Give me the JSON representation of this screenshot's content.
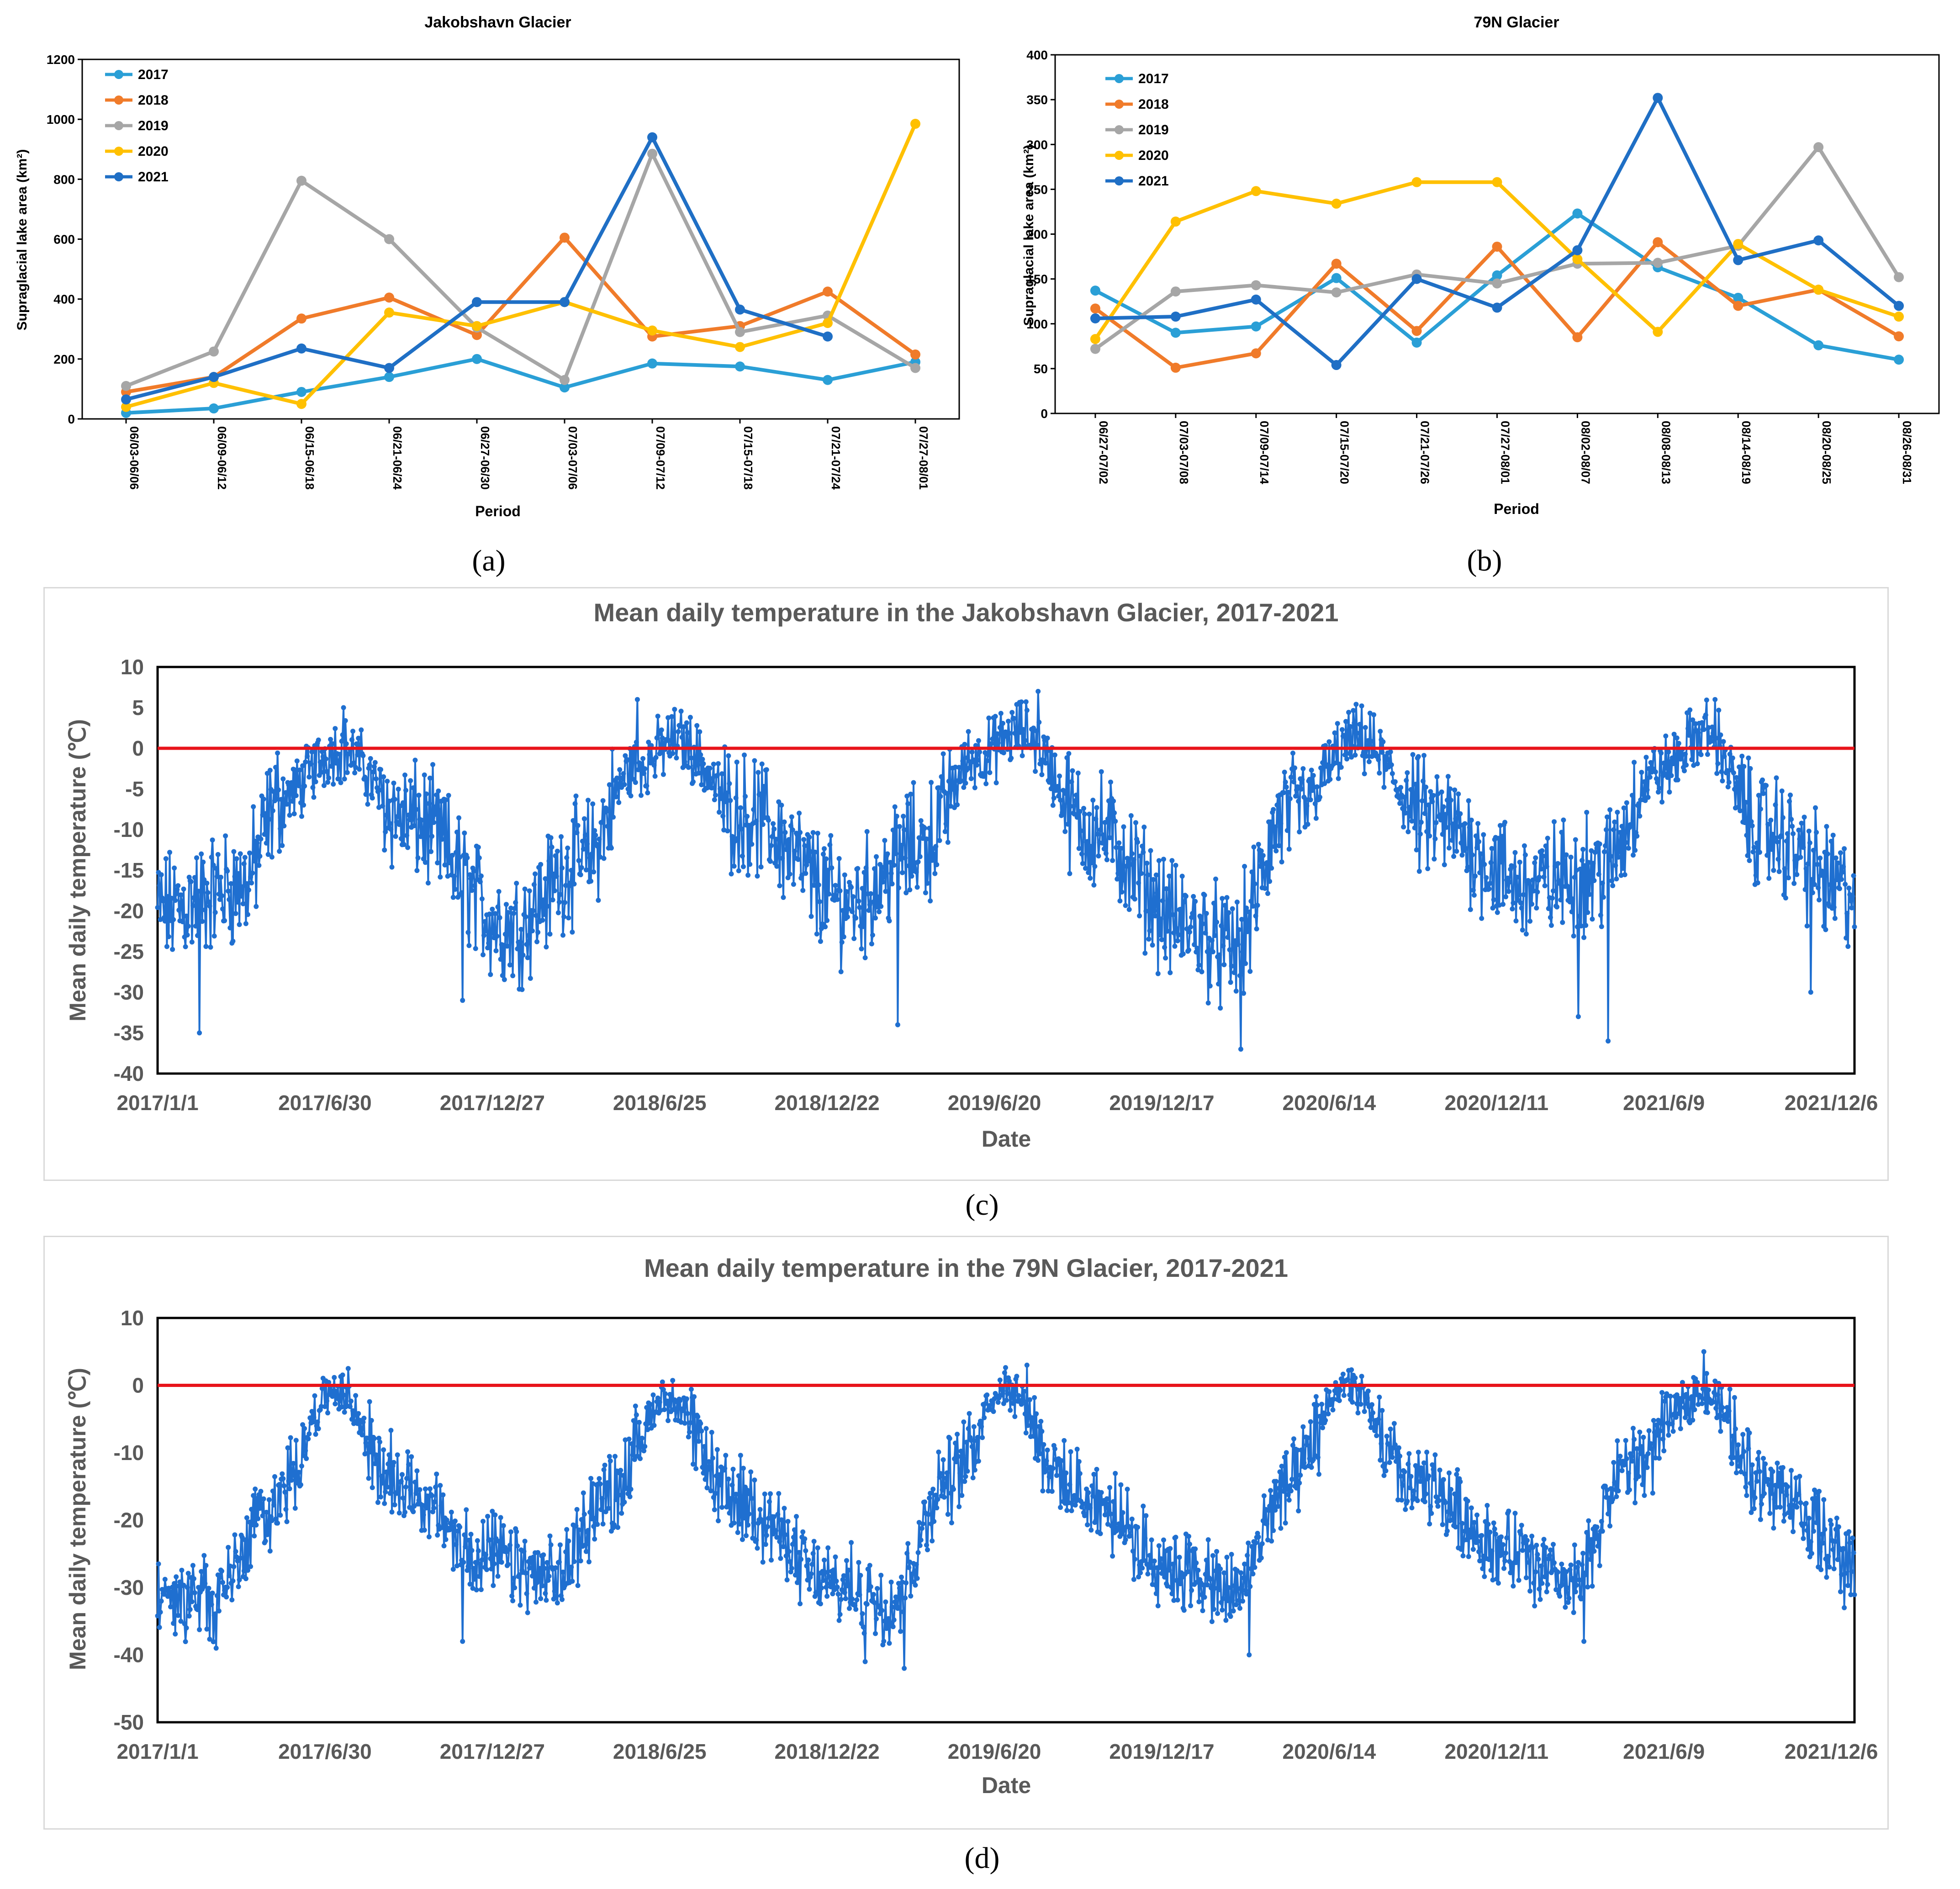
{
  "panels": {
    "a": {
      "caption": "(a)"
    },
    "b": {
      "caption": "(b)"
    },
    "c": {
      "caption": "(c)"
    },
    "d": {
      "caption": "(d)"
    }
  },
  "colors": {
    "2017": "#2a9fd6",
    "2018": "#f07b2a",
    "2019": "#a6a6a6",
    "2020": "#ffc000",
    "2021": "#1f6fc5",
    "temp": "#1f6fd0",
    "zero": "#e8141b",
    "text": "#595959"
  },
  "chart_data": [
    {
      "type": "line",
      "title": "Jakobshavn Glacier",
      "xlabel": "Period",
      "ylabel": "Supraglacial lake area (km²)",
      "ylim": [
        0,
        1200
      ],
      "yticks": [
        0,
        200,
        400,
        600,
        800,
        1000,
        1200
      ],
      "categories": [
        "06/03-06/06",
        "06/09-06/12",
        "06/15-06/18",
        "06/21-06/24",
        "06/27-06/30",
        "07/03-07/06",
        "07/09-07/12",
        "07/15-07/18",
        "07/21-07/24",
        "07/27-08/01"
      ],
      "legend": "top-left",
      "series": [
        {
          "name": "2017",
          "values": [
            20,
            35,
            90,
            140,
            200,
            105,
            185,
            175,
            130,
            190
          ]
        },
        {
          "name": "2018",
          "values": [
            90,
            140,
            335,
            405,
            280,
            605,
            275,
            310,
            425,
            215
          ]
        },
        {
          "name": "2019",
          "values": [
            110,
            225,
            795,
            600,
            305,
            130,
            885,
            290,
            345,
            170
          ]
        },
        {
          "name": "2020",
          "values": [
            40,
            120,
            50,
            355,
            310,
            390,
            295,
            240,
            320,
            985
          ]
        },
        {
          "name": "2021",
          "values": [
            65,
            140,
            235,
            170,
            390,
            390,
            940,
            365,
            275,
            null
          ]
        }
      ]
    },
    {
      "type": "line",
      "title": "79N Glacier",
      "xlabel": "Period",
      "ylabel": "Supraglacial lake area (km²)",
      "ylim": [
        0,
        400
      ],
      "yticks": [
        0,
        50,
        100,
        150,
        200,
        250,
        300,
        350,
        400
      ],
      "categories": [
        "06/27-07/02",
        "07/03-07/08",
        "07/09-07/14",
        "07/15-07/20",
        "07/21-07/26",
        "07/27-08/01",
        "08/02-08/07",
        "08/08-08/13",
        "08/14-08/19",
        "08/20-08/25",
        "08/26-08/31"
      ],
      "legend": "top-left",
      "series": [
        {
          "name": "2017",
          "values": [
            137,
            90,
            97,
            151,
            79,
            154,
            223,
            163,
            129,
            76,
            60
          ]
        },
        {
          "name": "2018",
          "values": [
            117,
            51,
            67,
            167,
            92,
            186,
            85,
            191,
            120,
            138,
            86
          ]
        },
        {
          "name": "2019",
          "values": [
            72,
            136,
            143,
            135,
            155,
            145,
            167,
            168,
            187,
            297,
            152
          ]
        },
        {
          "name": "2020",
          "values": [
            83,
            214,
            248,
            234,
            258,
            258,
            172,
            91,
            189,
            138,
            108
          ]
        },
        {
          "name": "2021",
          "values": [
            106,
            108,
            127,
            54,
            150,
            118,
            182,
            352,
            171,
            193,
            120
          ]
        }
      ]
    },
    {
      "type": "line",
      "title": "Mean daily temperature in the Jakobshavn Glacier, 2017-2021",
      "xlabel": "Date",
      "ylabel": "Mean daily temperature (℃)",
      "ylim": [
        -40,
        10
      ],
      "yticks": [
        10,
        5,
        0,
        -5,
        -10,
        -15,
        -20,
        -25,
        -30,
        -35,
        -40
      ],
      "xticks": [
        "2017/1/1",
        "2017/6/30",
        "2017/12/27",
        "2018/6/25",
        "2018/12/22",
        "2019/6/20",
        "2019/12/17",
        "2020/6/14",
        "2020/12/11",
        "2021/6/9",
        "2021/12/6"
      ],
      "x_start": "2017/1/1",
      "x_end": "2021/12/31",
      "reference_line": 0,
      "seasonal_mean": [
        {
          "date": "2017/1/1",
          "value": -20
        },
        {
          "date": "2017/4/1",
          "value": -17
        },
        {
          "date": "2017/5/15",
          "value": -6
        },
        {
          "date": "2017/7/15",
          "value": 0
        },
        {
          "date": "2017/10/1",
          "value": -9
        },
        {
          "date": "2018/1/15",
          "value": -22
        },
        {
          "date": "2018/4/1",
          "value": -14
        },
        {
          "date": "2018/6/1",
          "value": -2
        },
        {
          "date": "2018/7/15",
          "value": 1
        },
        {
          "date": "2018/9/20",
          "value": -8
        },
        {
          "date": "2019/1/15",
          "value": -19
        },
        {
          "date": "2019/4/1",
          "value": -12
        },
        {
          "date": "2019/6/1",
          "value": -1
        },
        {
          "date": "2019/7/20",
          "value": 2
        },
        {
          "date": "2019/10/1",
          "value": -10
        },
        {
          "date": "2020/1/15",
          "value": -22
        },
        {
          "date": "2020/3/1",
          "value": -25
        },
        {
          "date": "2020/5/1",
          "value": -8
        },
        {
          "date": "2020/7/15",
          "value": 1
        },
        {
          "date": "2020/10/1",
          "value": -9
        },
        {
          "date": "2021/1/15",
          "value": -17
        },
        {
          "date": "2021/4/1",
          "value": -15
        },
        {
          "date": "2021/6/1",
          "value": -3
        },
        {
          "date": "2021/7/25",
          "value": 2
        },
        {
          "date": "2021/9/20",
          "value": -10
        },
        {
          "date": "2021/12/31",
          "value": -18
        }
      ],
      "amplitude": 5.5,
      "extremes": [
        {
          "date": "2017/2/15",
          "value": -35
        },
        {
          "date": "2017/7/20",
          "value": 5
        },
        {
          "date": "2017/11/25",
          "value": -31
        },
        {
          "date": "2018/6/1",
          "value": 6
        },
        {
          "date": "2019/3/8",
          "value": -34
        },
        {
          "date": "2019/8/6",
          "value": 7
        },
        {
          "date": "2020/3/11",
          "value": -37
        },
        {
          "date": "2021/3/9",
          "value": -33
        },
        {
          "date": "2021/4/10",
          "value": -36
        },
        {
          "date": "2021/8/3",
          "value": 6
        },
        {
          "date": "2021/11/14",
          "value": -30
        }
      ]
    },
    {
      "type": "line",
      "title": "Mean daily temperature in the 79N Glacier, 2017-2021",
      "xlabel": "Date",
      "ylabel": "Mean daily temperature (℃)",
      "ylim": [
        -50,
        10
      ],
      "yticks": [
        10,
        0,
        -10,
        -20,
        -30,
        -40,
        -50
      ],
      "xticks": [
        "2017/1/1",
        "2017/6/30",
        "2017/12/27",
        "2018/6/25",
        "2018/12/22",
        "2019/6/20",
        "2019/12/17",
        "2020/6/14",
        "2020/12/11",
        "2021/6/9",
        "2021/12/6"
      ],
      "x_start": "2017/1/1",
      "x_end": "2021/12/31",
      "reference_line": 0,
      "seasonal_mean": [
        {
          "date": "2017/1/1",
          "value": -31
        },
        {
          "date": "2017/3/1",
          "value": -32
        },
        {
          "date": "2017/5/1",
          "value": -18
        },
        {
          "date": "2017/7/10",
          "value": -1
        },
        {
          "date": "2017/9/15",
          "value": -14
        },
        {
          "date": "2017/12/15",
          "value": -25
        },
        {
          "date": "2018/3/1",
          "value": -29
        },
        {
          "date": "2018/5/1",
          "value": -16
        },
        {
          "date": "2018/7/1",
          "value": -2
        },
        {
          "date": "2018/9/15",
          "value": -17
        },
        {
          "date": "2019/1/1",
          "value": -30
        },
        {
          "date": "2019/3/1",
          "value": -32
        },
        {
          "date": "2019/5/1",
          "value": -14
        },
        {
          "date": "2019/7/1",
          "value": 0
        },
        {
          "date": "2019/9/15",
          "value": -16
        },
        {
          "date": "2020/1/1",
          "value": -27
        },
        {
          "date": "2020/3/1",
          "value": -31
        },
        {
          "date": "2020/5/1",
          "value": -15
        },
        {
          "date": "2020/7/1",
          "value": 0
        },
        {
          "date": "2020/9/15",
          "value": -15
        },
        {
          "date": "2021/1/1",
          "value": -25
        },
        {
          "date": "2021/3/1",
          "value": -30
        },
        {
          "date": "2021/5/1",
          "value": -12
        },
        {
          "date": "2021/7/20",
          "value": -1
        },
        {
          "date": "2021/10/1",
          "value": -15
        },
        {
          "date": "2021/12/31",
          "value": -26
        }
      ],
      "amplitude": 4.5,
      "extremes": [
        {
          "date": "2017/3/5",
          "value": -39
        },
        {
          "date": "2017/7/25",
          "value": 2.5
        },
        {
          "date": "2017/11/25",
          "value": -38
        },
        {
          "date": "2018/6/28",
          "value": 0.5
        },
        {
          "date": "2019/2/1",
          "value": -41
        },
        {
          "date": "2019/3/15",
          "value": -42
        },
        {
          "date": "2019/7/25",
          "value": 3
        },
        {
          "date": "2020/3/20",
          "value": -40
        },
        {
          "date": "2020/7/10",
          "value": 1.5
        },
        {
          "date": "2021/3/15",
          "value": -38
        },
        {
          "date": "2021/7/22",
          "value": 5
        },
        {
          "date": "2021/12/20",
          "value": -33
        }
      ]
    }
  ]
}
